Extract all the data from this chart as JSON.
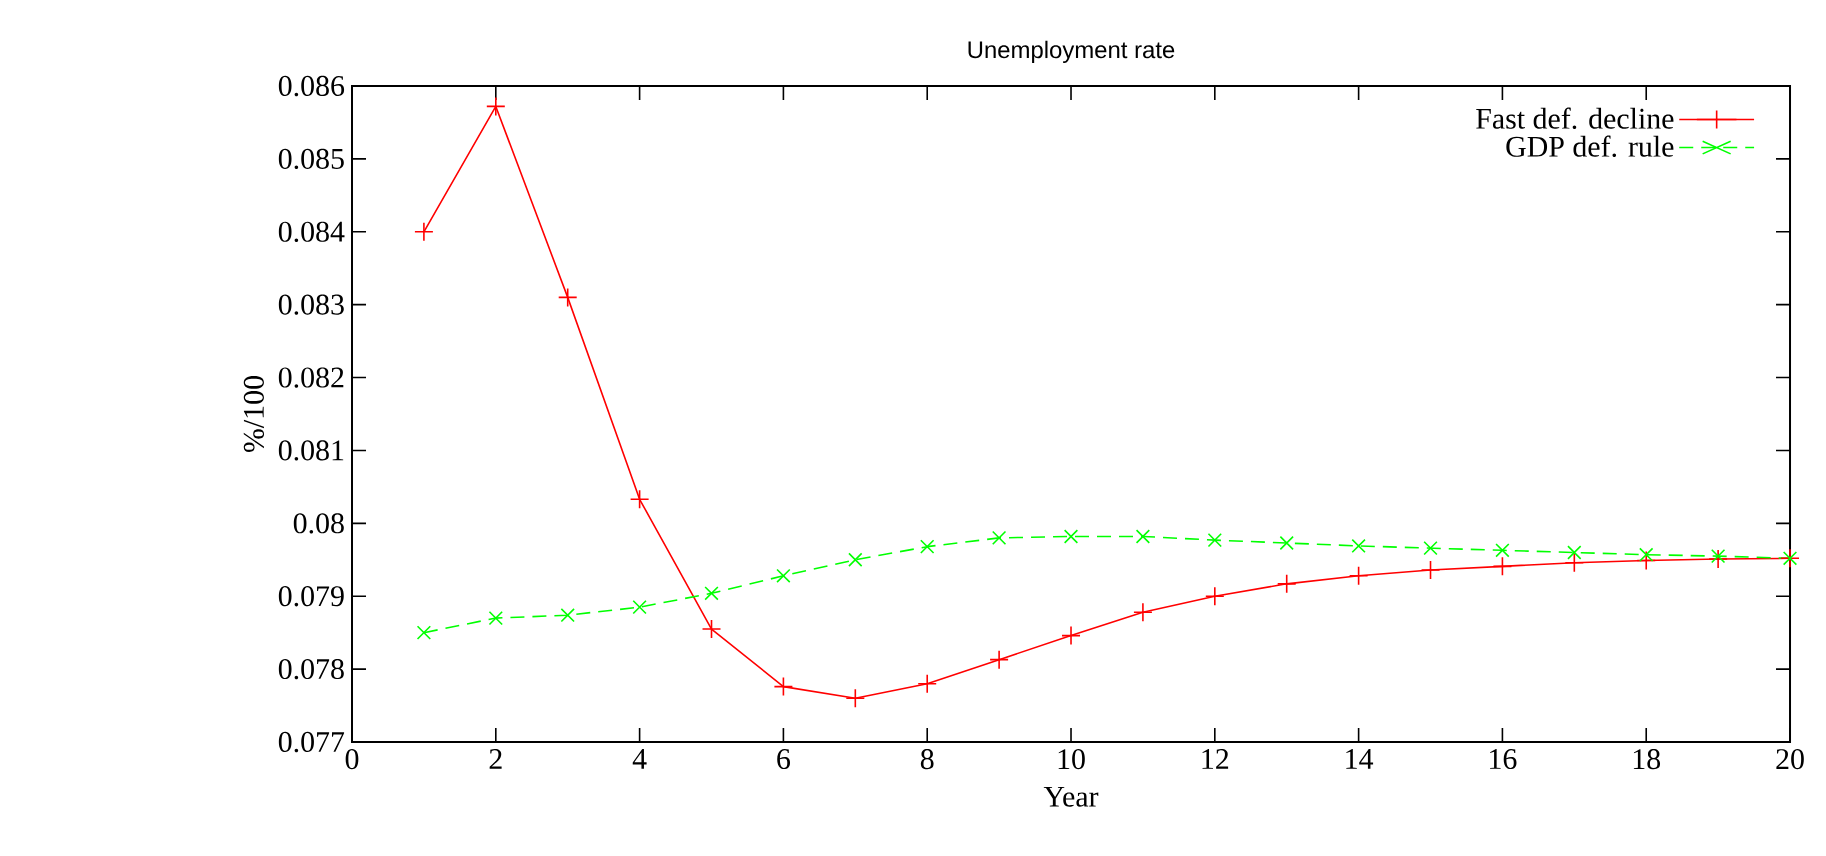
{
  "chart_data": {
    "type": "line",
    "title": "Unemployment rate",
    "xlabel": "Year",
    "ylabel": "%/100",
    "x": [
      1,
      2,
      3,
      4,
      5,
      6,
      7,
      8,
      9,
      10,
      11,
      12,
      13,
      14,
      15,
      16,
      17,
      18,
      19,
      20
    ],
    "series": [
      {
        "name": "Fast def. decline",
        "color": "#ff0000",
        "marker": "cross",
        "line_style": "solid",
        "values": [
          0.084,
          0.08572,
          0.0831,
          0.08033,
          0.07855,
          0.07776,
          0.0776,
          0.0778,
          0.07813,
          0.07846,
          0.07878,
          0.079,
          0.07917,
          0.07928,
          0.07936,
          0.07941,
          0.07946,
          0.07949,
          0.07951,
          0.07952
        ]
      },
      {
        "name": "GDP def. rule",
        "color": "#00ff00",
        "marker": "cross",
        "line_style": "dashed",
        "values": [
          0.0785,
          0.0787,
          0.07874,
          0.07885,
          0.07904,
          0.07928,
          0.0795,
          0.07968,
          0.0798,
          0.07982,
          0.07982,
          0.07977,
          0.07973,
          0.07969,
          0.07966,
          0.07963,
          0.0796,
          0.07957,
          0.07955,
          0.07952
        ]
      }
    ],
    "xlim": [
      0,
      20
    ],
    "ylim": [
      0.077,
      0.086
    ],
    "xticks": [
      0,
      2,
      4,
      6,
      8,
      10,
      12,
      14,
      16,
      18,
      20
    ],
    "yticks": [
      0.077,
      0.078,
      0.079,
      0.08,
      0.081,
      0.082,
      0.083,
      0.084,
      0.085,
      0.086
    ],
    "legend": "top right",
    "grid": false
  }
}
